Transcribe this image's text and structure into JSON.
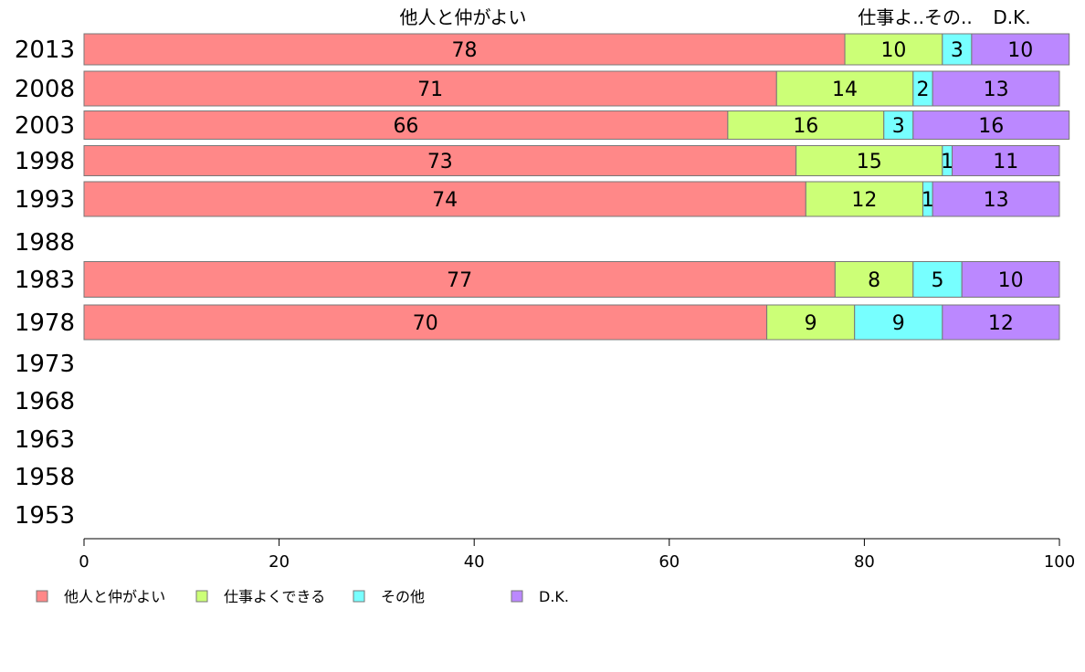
{
  "chart_data": {
    "type": "bar",
    "orientation": "horizontal",
    "stacked": true,
    "categories": [
      "2013",
      "2008",
      "2003",
      "1998",
      "1993",
      "1988",
      "1983",
      "1978",
      "1973",
      "1968",
      "1963",
      "1958",
      "1953"
    ],
    "series": [
      {
        "name": "他人と仲がよい",
        "color": "#ff8888",
        "values": [
          78,
          71,
          66,
          73,
          74,
          null,
          77,
          70,
          null,
          null,
          null,
          null,
          null
        ]
      },
      {
        "name": "仕事よくできる",
        "color": "#ccff77",
        "values": [
          10,
          14,
          16,
          15,
          12,
          null,
          8,
          9,
          null,
          null,
          null,
          null,
          null
        ]
      },
      {
        "name": "その他",
        "color": "#77ffff",
        "values": [
          3,
          2,
          3,
          1,
          1,
          null,
          5,
          9,
          null,
          null,
          null,
          null,
          null
        ]
      },
      {
        "name": "D.K.",
        "color": "#bb88ff",
        "values": [
          10,
          13,
          16,
          11,
          13,
          null,
          10,
          12,
          null,
          null,
          null,
          null,
          null
        ]
      }
    ],
    "top_labels": [
      "他人と仲がよい",
      "仕事よ..その..",
      "D.K."
    ],
    "xlim": [
      0,
      100
    ],
    "xticks": [
      0,
      20,
      40,
      60,
      80,
      100
    ],
    "grid": false,
    "legend_position": "bottom"
  }
}
